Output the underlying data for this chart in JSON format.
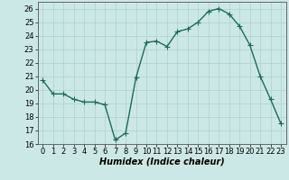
{
  "x": [
    0,
    1,
    2,
    3,
    4,
    5,
    6,
    7,
    8,
    9,
    10,
    11,
    12,
    13,
    14,
    15,
    16,
    17,
    18,
    19,
    20,
    21,
    22,
    23
  ],
  "y": [
    20.7,
    19.7,
    19.7,
    19.3,
    19.1,
    19.1,
    18.9,
    16.3,
    16.8,
    20.9,
    23.5,
    23.6,
    23.2,
    24.3,
    24.5,
    25.0,
    25.8,
    26.0,
    25.6,
    24.7,
    23.3,
    21.0,
    19.3,
    17.5
  ],
  "line_color": "#1a6b5a",
  "marker": "+",
  "markersize": 4,
  "linewidth": 1.0,
  "xlabel": "Humidex (Indice chaleur)",
  "xlabel_fontsize": 7,
  "tick_fontsize": 6,
  "ylim": [
    16,
    26.5
  ],
  "xlim": [
    -0.5,
    23.5
  ],
  "yticks": [
    16,
    17,
    18,
    19,
    20,
    21,
    22,
    23,
    24,
    25,
    26
  ],
  "xticks": [
    0,
    1,
    2,
    3,
    4,
    5,
    6,
    7,
    8,
    9,
    10,
    11,
    12,
    13,
    14,
    15,
    16,
    17,
    18,
    19,
    20,
    21,
    22,
    23
  ],
  "bg_color": "#cce8e6",
  "grid_color": "#aad0cd",
  "border_color": "#666666"
}
